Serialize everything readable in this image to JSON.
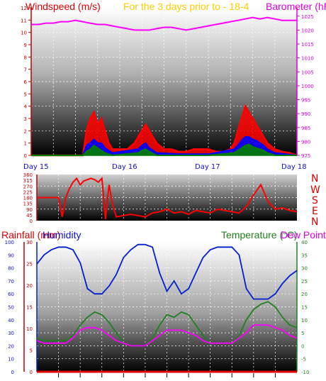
{
  "colors": {
    "wind": "#ff0000",
    "gust_fill": "#ff0000",
    "wind_avg": "#0000ff",
    "wind_low": "#008000",
    "barometer": "#ff00ff",
    "rain": "#e00000",
    "humidity": "#0020d0",
    "temperature": "#208020",
    "dewpoint": "#ff00ff",
    "day_label": "#1010d0",
    "title_yellow": "#ffcc00"
  },
  "chart_data": [
    {
      "type": "line",
      "title_left": "Windspeed (m/s)",
      "title_middle": "For the 3 days prior to - 18-4",
      "title_right": "Barometer (hPa)",
      "day_labels": [
        "Day 15",
        "Day 16",
        "Day 17",
        "Day 18"
      ],
      "y_left_ticks": [
        "0",
        "1",
        "2",
        "3",
        "4",
        "5",
        "6",
        "7",
        "8",
        "9",
        "10",
        "11",
        "12"
      ],
      "y_right_ticks": [
        "975",
        "980",
        "985",
        "990",
        "995",
        "1000",
        "1005",
        "1010",
        "1015",
        "1020",
        "1025"
      ],
      "ylim_left": [
        0,
        12
      ],
      "ylim_right": [
        975,
        1028
      ],
      "grid": true,
      "series": [
        {
          "name": "Barometer",
          "axis": "right",
          "x": [
            0,
            2,
            4,
            6,
            8,
            10,
            12,
            14,
            16,
            18,
            20,
            22,
            24,
            26,
            28,
            30,
            32,
            34,
            36,
            38,
            40,
            42,
            44,
            46,
            48,
            50,
            52,
            54,
            56,
            58,
            60,
            62,
            64,
            66,
            68,
            70,
            72
          ],
          "values": [
            1022,
            1022,
            1022.5,
            1022.5,
            1023,
            1023,
            1023.5,
            1023,
            1022.5,
            1022,
            1022,
            1021.5,
            1021,
            1020.5,
            1020,
            1020,
            1020,
            1020.5,
            1021,
            1021,
            1020.5,
            1020,
            1020.5,
            1021,
            1021.5,
            1022,
            1022.5,
            1023,
            1023.5,
            1024,
            1024.5,
            1024,
            1024.5,
            1024,
            1023.5,
            1023.5,
            1023.5
          ]
        },
        {
          "name": "Wind gust",
          "axis": "left",
          "x": [
            0,
            2,
            4,
            6,
            8,
            10,
            12,
            14,
            15,
            16,
            17,
            18,
            19,
            20,
            21,
            22,
            24,
            26,
            28,
            29,
            30,
            31,
            32,
            33,
            34,
            36,
            38,
            40,
            42,
            44,
            46,
            48,
            50,
            52,
            54,
            55,
            56,
            57,
            58,
            59,
            60,
            61,
            62,
            63,
            64,
            66,
            68,
            70,
            72
          ],
          "values": [
            0,
            0,
            0,
            0,
            0,
            0,
            0,
            0,
            2,
            3,
            3.5,
            2.5,
            3,
            2,
            1,
            0.5,
            0.5,
            0.5,
            1,
            1.5,
            2,
            2.5,
            2,
            1.5,
            1,
            0.5,
            0.5,
            0.3,
            0.3,
            0.5,
            0.5,
            0.5,
            0.3,
            0.3,
            0.5,
            1,
            2,
            3,
            4,
            3.5,
            3,
            2.5,
            2,
            1.5,
            1,
            0.5,
            0.3,
            0.2,
            0
          ]
        },
        {
          "name": "Wind average",
          "axis": "left",
          "x": [
            0,
            14,
            15,
            16,
            17,
            18,
            19,
            20,
            22,
            29,
            30,
            31,
            32,
            34,
            40,
            48,
            55,
            56,
            57,
            58,
            59,
            60,
            61,
            62,
            63,
            64,
            66,
            72
          ],
          "values": [
            0,
            0,
            0.8,
            1,
            1.3,
            1,
            1,
            0.6,
            0.2,
            0.5,
            0.8,
            1,
            0.6,
            0.2,
            0.1,
            0.1,
            0.5,
            0.8,
            1.2,
            1.5,
            1.5,
            1.3,
            1.2,
            1,
            0.8,
            0.5,
            0.2,
            0
          ]
        },
        {
          "name": "Wind low",
          "axis": "left",
          "x": [
            0,
            14,
            15,
            16,
            17,
            18,
            19,
            20,
            22,
            29,
            30,
            31,
            32,
            34,
            40,
            48,
            55,
            56,
            57,
            58,
            59,
            60,
            61,
            62,
            63,
            64,
            66,
            72
          ],
          "values": [
            0,
            0,
            0.3,
            0.5,
            0.8,
            0.6,
            0.4,
            0.2,
            0,
            0.2,
            0.4,
            0.5,
            0.3,
            0,
            0,
            0,
            0.2,
            0.4,
            0.6,
            0.8,
            0.9,
            0.7,
            0.6,
            0.5,
            0.4,
            0.2,
            0,
            0
          ]
        }
      ]
    },
    {
      "type": "scatter",
      "y_ticks": [
        "0",
        "45",
        "90",
        "135",
        "180",
        "225",
        "270",
        "315",
        "360"
      ],
      "compass": [
        "N",
        "W",
        "S",
        "E",
        "N"
      ],
      "ylim": [
        0,
        360
      ],
      "grid": true,
      "series": [
        {
          "name": "Wind direction",
          "x": [
            0,
            2,
            4,
            6,
            7,
            8,
            9,
            10,
            11,
            12,
            13,
            14,
            15,
            16,
            17,
            18,
            19,
            20,
            21,
            22,
            24,
            26,
            28,
            30,
            32,
            34,
            36,
            38,
            40,
            42,
            44,
            46,
            48,
            50,
            52,
            54,
            56,
            58,
            60,
            62,
            64,
            66,
            68,
            70,
            72
          ],
          "values": [
            180,
            180,
            180,
            180,
            30,
            180,
            250,
            300,
            330,
            280,
            310,
            320,
            330,
            320,
            300,
            330,
            10,
            280,
            120,
            30,
            40,
            50,
            40,
            30,
            60,
            70,
            90,
            60,
            70,
            50,
            80,
            70,
            60,
            90,
            80,
            70,
            60,
            110,
            200,
            280,
            150,
            90,
            100,
            80,
            70
          ]
        }
      ]
    },
    {
      "type": "line",
      "title_left": "Rainfall (mm)",
      "title_humidity": "Humidity",
      "title_temperature": "Temperature (°C)",
      "title_dewpoint": "Dew Point",
      "y_rain_ticks": [
        "0",
        "5",
        "10",
        "15",
        "20",
        "25",
        "30"
      ],
      "y_humidity_ticks": [
        "0",
        "10",
        "20",
        "30",
        "40",
        "50",
        "60",
        "70",
        "80",
        "90",
        "100"
      ],
      "y_temp_ticks": [
        "-10",
        "-5",
        "0",
        "5",
        "10",
        "15",
        "20",
        "25",
        "30",
        "35",
        "40"
      ],
      "ylim_rain": [
        0,
        30
      ],
      "ylim_humidity": [
        0,
        100
      ],
      "ylim_temp": [
        -10,
        40
      ],
      "grid": true,
      "series": [
        {
          "name": "Humidity",
          "axis": "humidity",
          "x": [
            0,
            2,
            4,
            6,
            8,
            10,
            12,
            14,
            16,
            18,
            20,
            22,
            24,
            26,
            28,
            30,
            32,
            34,
            36,
            38,
            40,
            42,
            44,
            46,
            48,
            50,
            52,
            54,
            56,
            58,
            60,
            62,
            64,
            66,
            68,
            70,
            72
          ],
          "values": [
            83,
            90,
            94,
            96,
            96,
            94,
            84,
            64,
            60,
            60,
            66,
            75,
            88,
            94,
            98,
            98,
            96,
            76,
            62,
            70,
            60,
            64,
            76,
            88,
            94,
            96,
            96,
            96,
            90,
            64,
            56,
            56,
            56,
            60,
            68,
            74,
            78
          ]
        },
        {
          "name": "Temperature",
          "axis": "temp",
          "x": [
            0,
            2,
            4,
            6,
            8,
            10,
            12,
            14,
            16,
            18,
            20,
            22,
            24,
            26,
            28,
            30,
            32,
            34,
            36,
            38,
            40,
            42,
            44,
            46,
            48,
            50,
            52,
            54,
            56,
            58,
            60,
            62,
            64,
            66,
            68,
            70,
            72
          ],
          "values": [
            3,
            2,
            2,
            2,
            2,
            4,
            8,
            11,
            13,
            12,
            9,
            5,
            1,
            0,
            0,
            0,
            3,
            8,
            12,
            11,
            13,
            12,
            8,
            4,
            1,
            1,
            1,
            1,
            4,
            10,
            14,
            16,
            17,
            15,
            11,
            8,
            7
          ]
        },
        {
          "name": "Dew Point",
          "axis": "temp",
          "x": [
            0,
            2,
            4,
            6,
            8,
            10,
            12,
            14,
            16,
            18,
            20,
            22,
            24,
            26,
            28,
            30,
            32,
            34,
            36,
            38,
            40,
            42,
            44,
            46,
            48,
            50,
            52,
            54,
            56,
            58,
            60,
            62,
            64,
            66,
            68,
            70,
            72
          ],
          "values": [
            2,
            1,
            1,
            1,
            1,
            3,
            6,
            7,
            7,
            6,
            4,
            2,
            1,
            0,
            0,
            0,
            2,
            4,
            6,
            6,
            6,
            5,
            4,
            2,
            1,
            1,
            1,
            1,
            3,
            5,
            8,
            8,
            8,
            7,
            6,
            4,
            3
          ]
        },
        {
          "name": "Rainfall",
          "axis": "rain",
          "x": [
            0,
            72
          ],
          "values": [
            0,
            0
          ]
        }
      ]
    }
  ]
}
